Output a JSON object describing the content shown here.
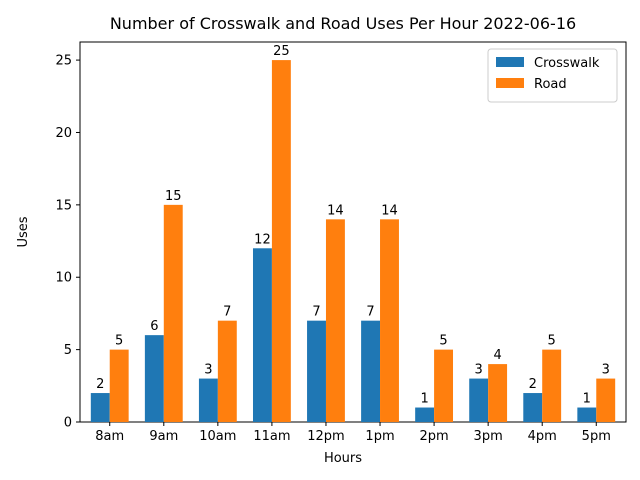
{
  "chart_data": {
    "type": "bar",
    "title": "Number of Crosswalk and Road Uses Per Hour 2022-06-16",
    "xlabel": "Hours",
    "ylabel": "Uses",
    "categories": [
      "8am",
      "9am",
      "10am",
      "11am",
      "12pm",
      "1pm",
      "2pm",
      "3pm",
      "4pm",
      "5pm"
    ],
    "series": [
      {
        "name": "Crosswalk",
        "color": "#1f77b4",
        "values": [
          2,
          6,
          3,
          12,
          7,
          7,
          1,
          3,
          2,
          1
        ]
      },
      {
        "name": "Road",
        "color": "#ff7f0e",
        "values": [
          5,
          15,
          7,
          25,
          14,
          14,
          5,
          4,
          5,
          3
        ]
      }
    ],
    "ylim": [
      0,
      26.25
    ],
    "yticks": [
      0,
      5,
      10,
      15,
      20,
      25
    ],
    "grid": false,
    "legend_position": "top-right"
  }
}
